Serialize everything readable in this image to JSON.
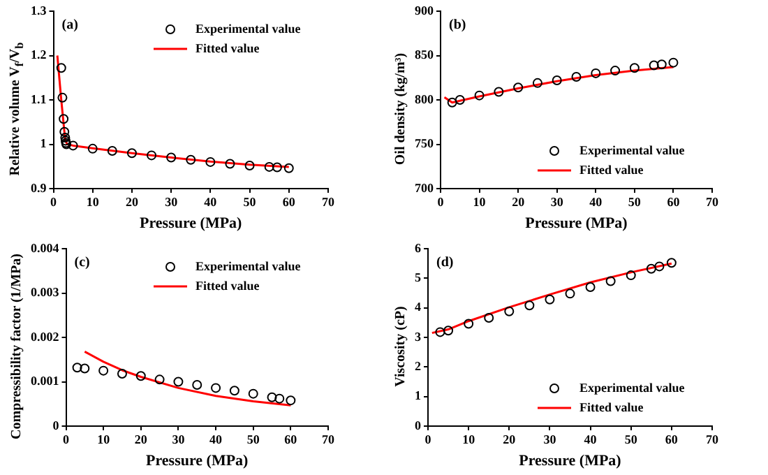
{
  "chart_data": [
    {
      "type": "scatter",
      "xlabel": "Pressure (MPa)",
      "ylabel": "Relative volume  V$_{f}$/V$_{b}$",
      "annotations": [
        "(a)"
      ],
      "legend": "top right",
      "grid": false,
      "xlim": [
        0,
        70
      ],
      "xticks": [
        0,
        10,
        20,
        30,
        40,
        50,
        60,
        70
      ],
      "ylim": [
        0.9,
        1.3
      ],
      "yticks": [
        0.9,
        1,
        1.1,
        1.2,
        1.3
      ],
      "series": [
        {
          "name": "Experimental value",
          "type": "scatter",
          "marker": "circle",
          "color": "#000000",
          "x": [
            2,
            2.3,
            2.6,
            2.8,
            3,
            3.1,
            3.2,
            3.3,
            5,
            10,
            15,
            20,
            25,
            30,
            35,
            40,
            45,
            50,
            55,
            57,
            60
          ],
          "values": [
            1.172,
            1.105,
            1.057,
            1.028,
            1.015,
            1.008,
            1.003,
            1.0,
            0.997,
            0.99,
            0.985,
            0.98,
            0.975,
            0.97,
            0.965,
            0.96,
            0.956,
            0.952,
            0.949,
            0.948,
            0.946
          ]
        },
        {
          "name": "Fitted value",
          "type": "line",
          "marker": "none",
          "line_style": "solid",
          "color": "#ff0000",
          "x": [
            1,
            2,
            3,
            3.5,
            5,
            10,
            20,
            30,
            40,
            50,
            60
          ],
          "values": [
            1.2,
            1.1,
            1.01,
            1.0,
            0.997,
            0.991,
            0.98,
            0.97,
            0.961,
            0.954,
            0.949
          ]
        }
      ]
    },
    {
      "type": "scatter",
      "xlabel": "Pressure (MPa)",
      "ylabel": "Oil density (kg/m³)",
      "annotations": [
        "(b)"
      ],
      "legend": "bottom right",
      "grid": false,
      "xlim": [
        0,
        70
      ],
      "xticks": [
        0,
        10,
        20,
        30,
        40,
        50,
        60,
        70
      ],
      "ylim": [
        700,
        900
      ],
      "yticks": [
        700,
        750,
        800,
        850,
        900
      ],
      "series": [
        {
          "name": "Experimental value",
          "type": "scatter",
          "marker": "circle",
          "color": "#000000",
          "x": [
            3,
            5,
            10,
            15,
            20,
            25,
            30,
            35,
            40,
            45,
            50,
            55,
            57,
            60
          ],
          "values": [
            797,
            800,
            805,
            809,
            814,
            819,
            822,
            826,
            830,
            833,
            836,
            839,
            840,
            842
          ]
        },
        {
          "name": "Fitted value",
          "type": "line",
          "marker": "none",
          "line_style": "solid",
          "color": "#ff0000",
          "x": [
            1,
            3,
            10,
            20,
            30,
            40,
            50,
            60
          ],
          "values": [
            803,
            797,
            804,
            813,
            821,
            828,
            833,
            837
          ]
        }
      ]
    },
    {
      "type": "scatter",
      "xlabel": "Pressure (MPa)",
      "ylabel": "Compressibility  factor (1/MPa)",
      "annotations": [
        "(c)"
      ],
      "legend": "top right",
      "grid": false,
      "xlim": [
        0,
        70
      ],
      "xticks": [
        0,
        10,
        20,
        30,
        40,
        50,
        60,
        70
      ],
      "ylim": [
        0,
        0.004
      ],
      "yticks": [
        0,
        0.001,
        0.002,
        0.003,
        0.004
      ],
      "series": [
        {
          "name": "Experimental value",
          "type": "scatter",
          "marker": "circle",
          "color": "#000000",
          "x": [
            3,
            5,
            10,
            15,
            20,
            25,
            30,
            35,
            40,
            45,
            50,
            55,
            57,
            60
          ],
          "values": [
            0.00132,
            0.0013,
            0.00125,
            0.00118,
            0.00113,
            0.00105,
            0.001,
            0.00093,
            0.00086,
            0.0008,
            0.00073,
            0.00065,
            0.00062,
            0.00058
          ]
        },
        {
          "name": "Fitted value",
          "type": "line",
          "marker": "none",
          "line_style": "solid",
          "color": "#ff0000",
          "x": [
            5,
            10,
            15,
            20,
            30,
            40,
            50,
            60
          ],
          "values": [
            0.00168,
            0.00145,
            0.00126,
            0.00111,
            0.00086,
            0.00068,
            0.00056,
            0.00047
          ]
        }
      ]
    },
    {
      "type": "scatter",
      "xlabel": "Pressure (MPa)",
      "ylabel": "Viscosity (cP)",
      "annotations": [
        "(d)"
      ],
      "legend": "bottom right",
      "grid": false,
      "xlim": [
        0,
        70
      ],
      "xticks": [
        0,
        10,
        20,
        30,
        40,
        50,
        60,
        70
      ],
      "ylim": [
        0,
        6
      ],
      "yticks": [
        0,
        1,
        2,
        3,
        4,
        5,
        6
      ],
      "series": [
        {
          "name": "Experimental value",
          "type": "scatter",
          "marker": "circle",
          "color": "#000000",
          "x": [
            3,
            5,
            10,
            15,
            20,
            25,
            30,
            35,
            40,
            45,
            50,
            55,
            57,
            60
          ],
          "values": [
            3.18,
            3.23,
            3.46,
            3.66,
            3.88,
            4.08,
            4.28,
            4.48,
            4.7,
            4.9,
            5.1,
            5.32,
            5.4,
            5.52
          ]
        },
        {
          "name": "Fitted value",
          "type": "line",
          "marker": "none",
          "line_style": "solid",
          "color": "#ff0000",
          "x": [
            1,
            5,
            10,
            20,
            30,
            40,
            50,
            60
          ],
          "values": [
            3.15,
            3.27,
            3.55,
            4.02,
            4.45,
            4.86,
            5.2,
            5.5
          ]
        }
      ]
    }
  ]
}
